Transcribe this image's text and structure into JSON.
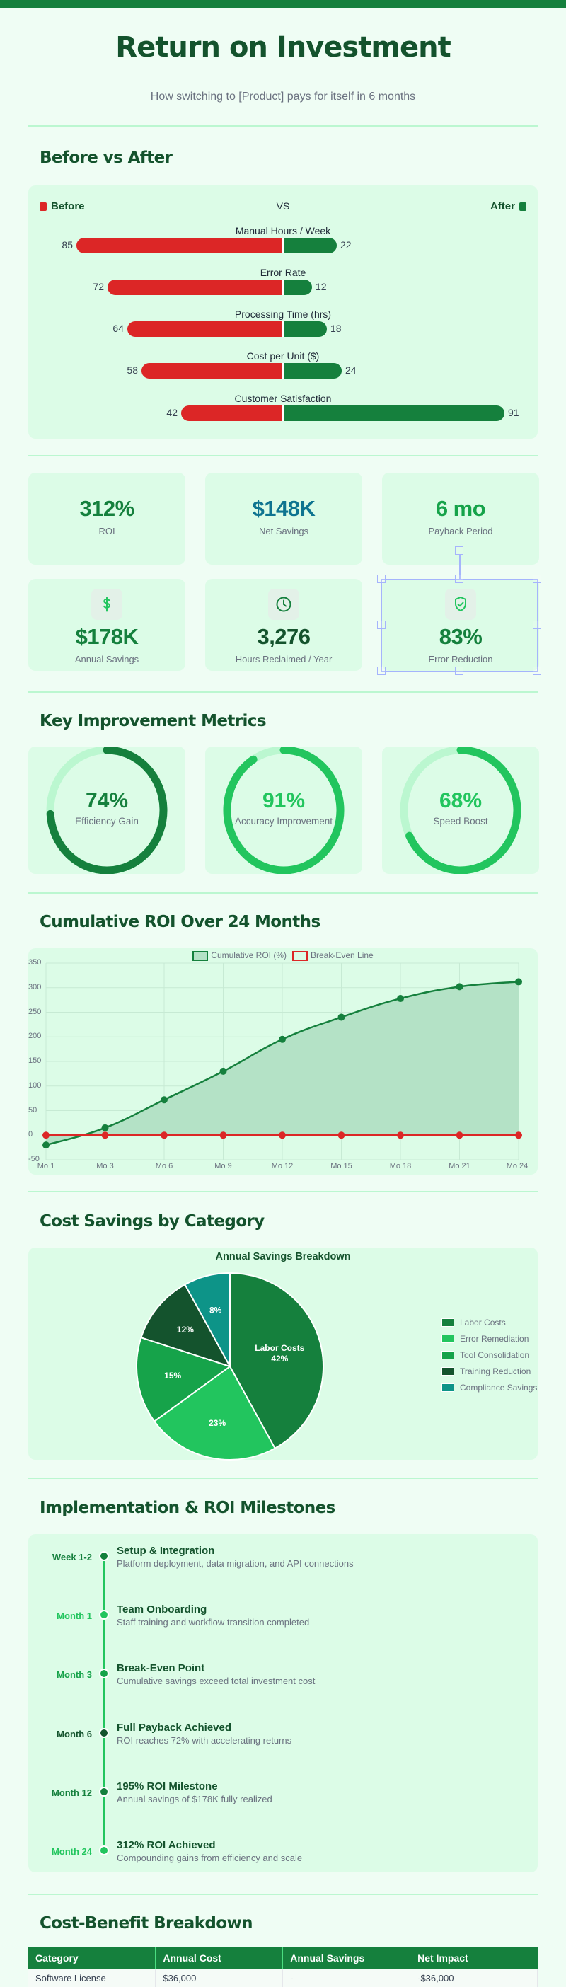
{
  "header": {
    "title": "Return on Investment",
    "subtitle": "How switching to [Product] pays for itself in 6 months"
  },
  "before_after": {
    "heading": "Before vs After",
    "legend_before": "Before",
    "legend_vs": "VS",
    "legend_after": "After",
    "colors": {
      "before": "#dc2626",
      "after": "#15803d"
    },
    "rows": [
      {
        "label": "Manual Hours / Week",
        "before": "85",
        "after": "22"
      },
      {
        "label": "Error Rate",
        "before": "72",
        "after": "12"
      },
      {
        "label": "Processing Time (hrs)",
        "before": "64",
        "after": "18"
      },
      {
        "label": "Cost per Unit ($)",
        "before": "58",
        "after": "24"
      },
      {
        "label": "Customer Satisfaction",
        "before": "42",
        "after": "91"
      }
    ]
  },
  "stats": [
    {
      "value": "312%",
      "label": "ROI",
      "color": "#15803d"
    },
    {
      "value": "$148K",
      "label": "Net Savings",
      "color": "#0e7490"
    },
    {
      "value": "6 mo",
      "label": "Payback Period",
      "color": "#16a34a"
    },
    {
      "value": "$178K",
      "label": "Annual Savings",
      "icon": "dollar-icon",
      "color": "#15803d"
    },
    {
      "value": "3,276",
      "label": "Hours Reclaimed / Year",
      "icon": "clock-icon",
      "color": "#14532d"
    },
    {
      "value": "83%",
      "label": "Error Reduction",
      "icon": "shield-check-icon",
      "color": "#15803d"
    }
  ],
  "metrics": {
    "heading": "Key Improvement Metrics",
    "gauges": [
      {
        "value": "74%",
        "pct": 74,
        "label": "Efficiency Gain",
        "color": "#15803d"
      },
      {
        "value": "91%",
        "pct": 91,
        "label": "Accuracy Improvement",
        "color": "#22c55e"
      },
      {
        "value": "68%",
        "pct": 68,
        "label": "Speed Boost",
        "color": "#22c55e"
      }
    ]
  },
  "roi_chart": {
    "heading": "Cumulative ROI Over 24 Months",
    "legend": [
      "Cumulative ROI (%)",
      "Break-Even Line"
    ],
    "y_ticks": [
      "350",
      "300",
      "250",
      "200",
      "150",
      "100",
      "50",
      "0",
      "-50"
    ],
    "x_ticks": [
      "Mo 1",
      "Mo 3",
      "Mo 6",
      "Mo 9",
      "Mo 12",
      "Mo 15",
      "Mo 18",
      "Mo 21",
      "Mo 24"
    ]
  },
  "cost_savings": {
    "heading": "Cost Savings by Category",
    "chart_title": "Annual Savings Breakdown",
    "slices": [
      {
        "label": "Labor Costs",
        "pct": "42%",
        "color": "#15803d",
        "inner": "Labor Costs"
      },
      {
        "label": "Error Remediation",
        "pct": "23%",
        "color": "#22c55e"
      },
      {
        "label": "Tool Consolidation",
        "pct": "15%",
        "color": "#16a34a"
      },
      {
        "label": "Training Reduction",
        "pct": "12%",
        "color": "#14532d"
      },
      {
        "label": "Compliance Savings",
        "pct": "8%",
        "color": "#0d9488"
      }
    ]
  },
  "milestones": {
    "heading": "Implementation & ROI Milestones",
    "items": [
      {
        "when": "Week 1-2",
        "title": "Setup & Integration",
        "desc": "Platform deployment, data migration, and API connections",
        "color": "#15803d"
      },
      {
        "when": "Month 1",
        "title": "Team Onboarding",
        "desc": "Staff training and workflow transition completed",
        "color": "#22c55e"
      },
      {
        "when": "Month 3",
        "title": "Break-Even Point",
        "desc": "Cumulative savings exceed total investment cost",
        "color": "#16a34a"
      },
      {
        "when": "Month 6",
        "title": "Full Payback Achieved",
        "desc": "ROI reaches 72% with accelerating returns",
        "color": "#14532d"
      },
      {
        "when": "Month 12",
        "title": "195% ROI Milestone",
        "desc": "Annual savings of $178K fully realized",
        "color": "#15803d"
      },
      {
        "when": "Month 24",
        "title": "312% ROI Achieved",
        "desc": "Compounding gains from efficiency and scale",
        "color": "#22c55e"
      }
    ]
  },
  "cost_benefit": {
    "heading": "Cost-Benefit Breakdown",
    "columns": [
      "Category",
      "Annual Cost",
      "Annual Savings",
      "Net Impact"
    ],
    "rows": [
      [
        "Software License",
        "$36,000",
        "-",
        "-$36,000"
      ]
    ]
  },
  "chart_data": [
    {
      "type": "bar",
      "title": "Before vs After",
      "categories": [
        "Manual Hours / Week",
        "Error Rate",
        "Processing Time (hrs)",
        "Cost per Unit ($)",
        "Customer Satisfaction"
      ],
      "series": [
        {
          "name": "Before",
          "values": [
            85,
            72,
            64,
            58,
            42
          ]
        },
        {
          "name": "After",
          "values": [
            22,
            12,
            18,
            24,
            91
          ]
        }
      ],
      "layout": "diverging horizontal"
    },
    {
      "type": "line",
      "title": "Cumulative ROI Over 24 Months",
      "categories": [
        "Mo 1",
        "Mo 3",
        "Mo 6",
        "Mo 9",
        "Mo 12",
        "Mo 15",
        "Mo 18",
        "Mo 21",
        "Mo 24"
      ],
      "series": [
        {
          "name": "Cumulative ROI (%)",
          "values": [
            -20,
            15,
            72,
            130,
            195,
            240,
            278,
            302,
            312
          ],
          "fill": true
        },
        {
          "name": "Break-Even Line",
          "values": [
            0,
            0,
            0,
            0,
            0,
            0,
            0,
            0,
            0
          ]
        }
      ],
      "ylim": [
        -50,
        350
      ],
      "grid": true,
      "legend_position": "top"
    },
    {
      "type": "pie",
      "title": "Annual Savings Breakdown",
      "categories": [
        "Labor Costs",
        "Error Remediation",
        "Tool Consolidation",
        "Training Reduction",
        "Compliance Savings"
      ],
      "values": [
        42,
        23,
        15,
        12,
        8
      ],
      "legend_position": "right"
    }
  ]
}
